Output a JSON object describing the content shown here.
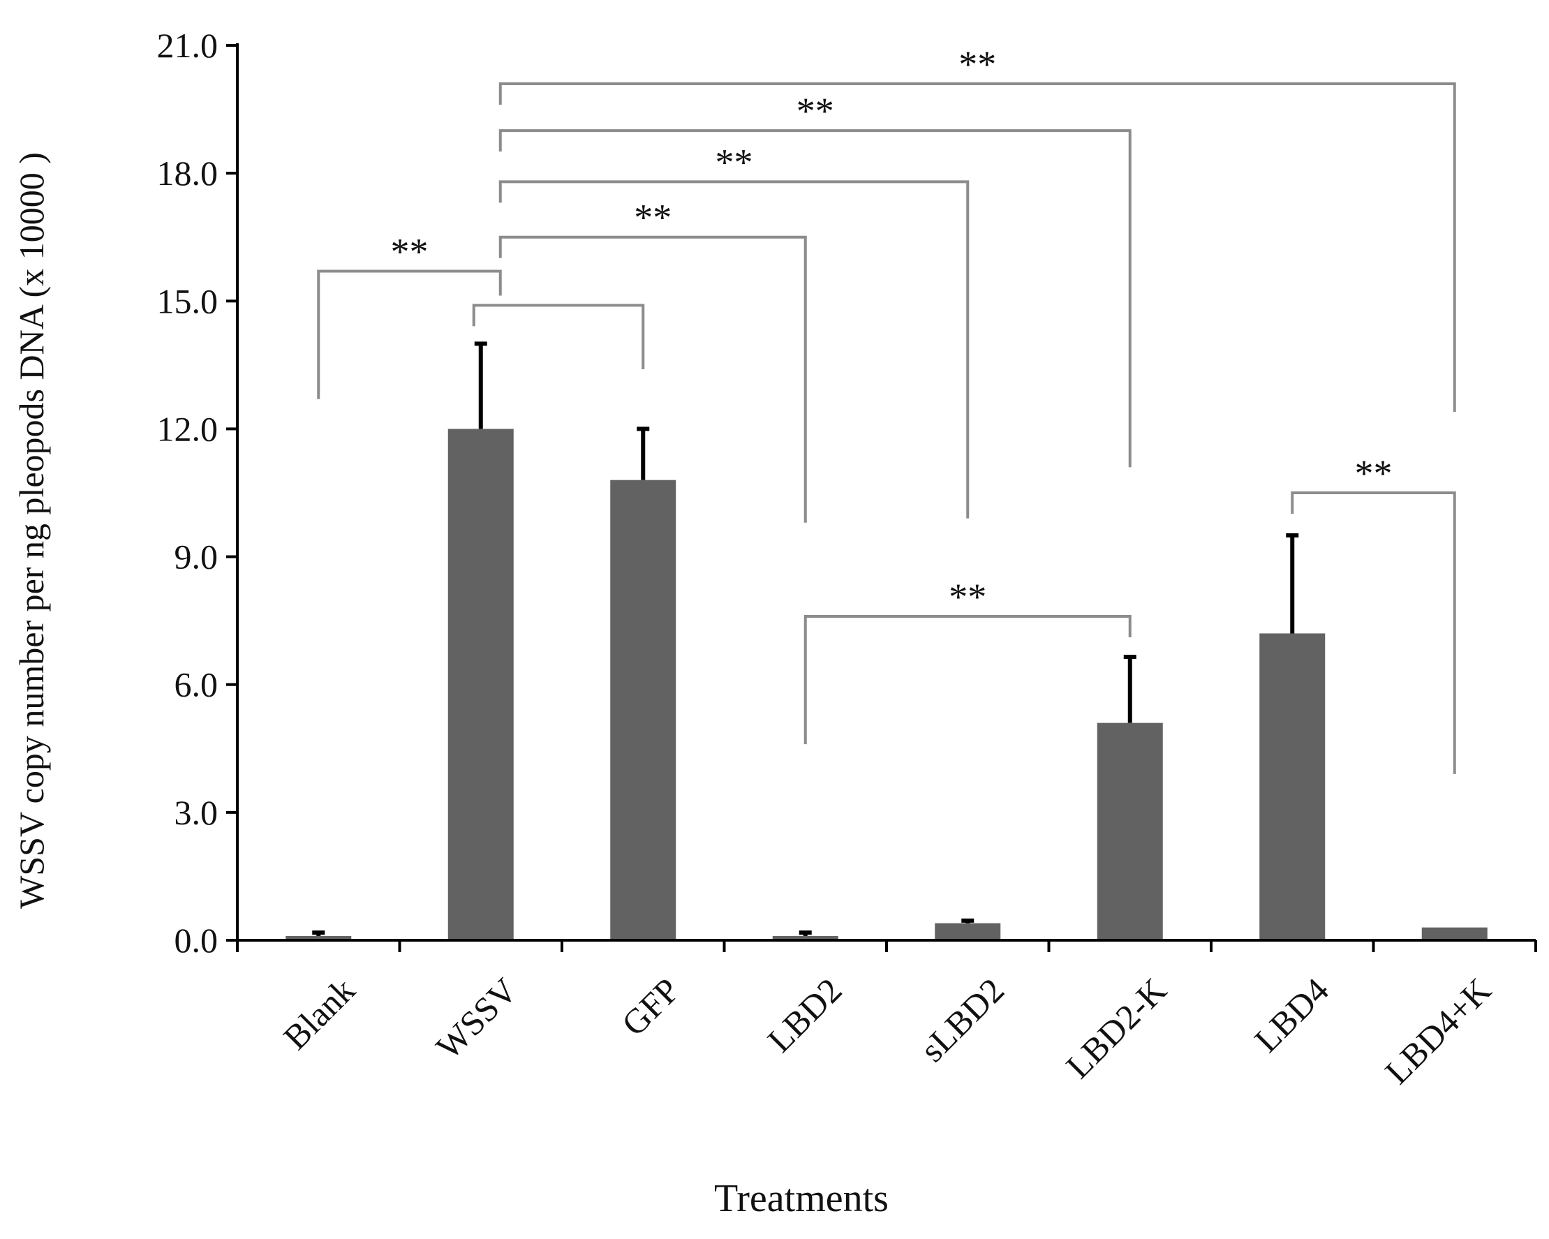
{
  "chart_data": {
    "type": "bar",
    "title": "",
    "xlabel": "Treatments",
    "ylabel": "WSSV copy number per ng pleopods DNA (x 10000 )",
    "ylim": [
      0,
      21
    ],
    "yticks": [
      "0.0",
      "3.0",
      "6.0",
      "9.0",
      "12.0",
      "15.0",
      "18.0",
      "21.0"
    ],
    "categories": [
      "Blank",
      "WSSV",
      "GFP",
      "LBD2",
      "sLBD2",
      "LBD2-K",
      "LBD4",
      "LBD4+K"
    ],
    "values": [
      0.1,
      12.0,
      10.8,
      0.1,
      0.4,
      5.1,
      7.2,
      0.3
    ],
    "errors": [
      0.08,
      2.0,
      1.2,
      0.08,
      0.06,
      1.55,
      2.3,
      0
    ],
    "bar_color": "#626262",
    "bracket_color": "#8c8c8c",
    "comparisons": [
      {
        "from": "Blank",
        "to": "WSSV",
        "label": "**",
        "level": 15.7
      },
      {
        "from": "WSSV",
        "to": "GFP",
        "label": "",
        "level": 14.9
      },
      {
        "from": "WSSV",
        "to": "LBD2",
        "label": "**",
        "level": 16.5
      },
      {
        "from": "WSSV",
        "to": "sLBD2",
        "label": "**",
        "level": 17.8
      },
      {
        "from": "WSSV",
        "to": "LBD2-K",
        "label": "**",
        "level": 19.0
      },
      {
        "from": "WSSV",
        "to": "LBD4+K",
        "label": "**",
        "level": 20.1
      },
      {
        "from": "LBD2",
        "to": "LBD2-K",
        "label": "**",
        "level": 7.6
      },
      {
        "from": "LBD4",
        "to": "LBD4+K",
        "label": "**",
        "level": 10.5
      }
    ]
  }
}
